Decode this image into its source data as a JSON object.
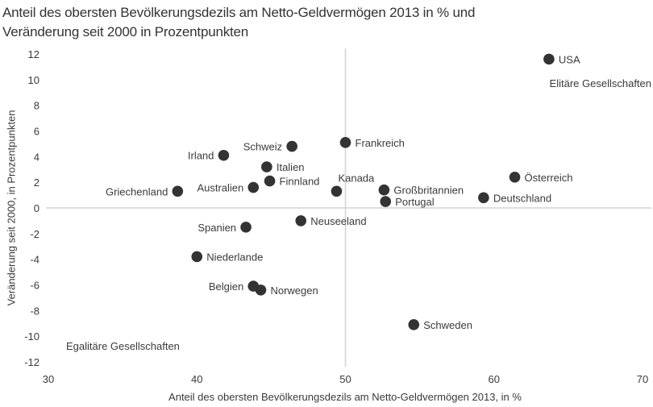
{
  "chart_data": {
    "type": "scatter",
    "title": "Anteil des obersten Bevölkerungsdezils am Netto-Geldvermögen 2013 in % und Veränderung seit 2000 in Prozentpunkten",
    "title_lines": [
      "Anteil des obersten Bevölkerungsdezils am Netto-Geldvermögen 2013 in % und",
      "Veränderung seit 2000 in Prozentpunkten"
    ],
    "xlabel": "Anteil des obersten Bevölkerungsdezils am Netto-Geldvermögen 2013, in %",
    "ylabel": "Veränderung seit 2000, in Prozentpunkten",
    "xlim": [
      30,
      70
    ],
    "ylim": [
      -12,
      12
    ],
    "x_ticks": [
      30,
      40,
      50,
      60,
      70
    ],
    "y_ticks": [
      12,
      10,
      8,
      6,
      4,
      2,
      0,
      -2,
      -4,
      -6,
      -8,
      -10,
      -12
    ],
    "grid": false,
    "reference_lines": {
      "x": 50,
      "y": 0
    },
    "annotations": [
      {
        "text": "Elitäre Gesellschaften",
        "position": "top-right"
      },
      {
        "text": "Egalitäre Gesellschaften",
        "position": "bottom-left"
      }
    ],
    "points": [
      {
        "label": "USA",
        "x": 63.7,
        "y": 11.6,
        "label_side": "right"
      },
      {
        "label": "Österreich",
        "x": 61.4,
        "y": 2.4,
        "label_side": "right"
      },
      {
        "label": "Deutschland",
        "x": 59.3,
        "y": 0.8,
        "label_side": "right"
      },
      {
        "label": "Frankreich",
        "x": 50.0,
        "y": 5.1,
        "label_side": "right"
      },
      {
        "label": "Schweiz",
        "x": 46.4,
        "y": 4.8,
        "label_side": "left"
      },
      {
        "label": "Irland",
        "x": 41.8,
        "y": 4.1,
        "label_side": "left"
      },
      {
        "label": "Italien",
        "x": 44.7,
        "y": 3.2,
        "label_side": "right"
      },
      {
        "label": "Finnland",
        "x": 44.9,
        "y": 2.1,
        "label_side": "right"
      },
      {
        "label": "Australien",
        "x": 43.8,
        "y": 1.6,
        "label_side": "left"
      },
      {
        "label": "Griechenland",
        "x": 38.7,
        "y": 1.3,
        "label_side": "left"
      },
      {
        "label": "Kanada",
        "x": 49.4,
        "y": 1.3,
        "label_side": "above-right"
      },
      {
        "label": "Großbritannien",
        "x": 52.6,
        "y": 1.4,
        "label_side": "right"
      },
      {
        "label": "Portugal",
        "x": 52.7,
        "y": 0.5,
        "label_side": "right"
      },
      {
        "label": "Neuseeland",
        "x": 47.0,
        "y": -1.0,
        "label_side": "right"
      },
      {
        "label": "Spanien",
        "x": 43.3,
        "y": -1.5,
        "label_side": "left"
      },
      {
        "label": "Niederlande",
        "x": 40.0,
        "y": -3.8,
        "label_side": "right"
      },
      {
        "label": "Belgien",
        "x": 43.8,
        "y": -6.1,
        "label_side": "left"
      },
      {
        "label": "Norwegen",
        "x": 44.3,
        "y": -6.4,
        "label_side": "right"
      },
      {
        "label": "Schweden",
        "x": 54.6,
        "y": -9.1,
        "label_side": "right"
      }
    ],
    "colors": {
      "marker": "#333333",
      "reference_line": "#d4d4d4",
      "text": "#3a3a3a"
    }
  }
}
